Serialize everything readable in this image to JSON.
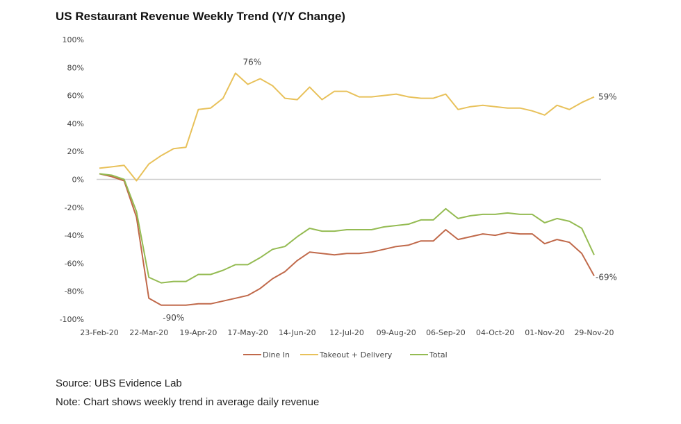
{
  "chart_data": {
    "type": "line",
    "title": "US Restaurant Revenue Weekly Trend (Y/Y Change)",
    "xlabel": "",
    "ylabel": "",
    "ylim": [
      -100,
      100
    ],
    "yticks": [
      "100%",
      "80%",
      "60%",
      "40%",
      "20%",
      "0%",
      "-20%",
      "-40%",
      "-60%",
      "-80%",
      "-100%"
    ],
    "ytick_values": [
      100,
      80,
      60,
      40,
      20,
      0,
      -20,
      -40,
      -60,
      -80,
      -100
    ],
    "xtick_labels": [
      "23-Feb-20",
      "22-Mar-20",
      "19-Apr-20",
      "17-May-20",
      "14-Jun-20",
      "12-Jul-20",
      "09-Aug-20",
      "06-Sep-20",
      "04-Oct-20",
      "01-Nov-20",
      "29-Nov-20"
    ],
    "x": [
      "23-Feb-20",
      "01-Mar-20",
      "08-Mar-20",
      "15-Mar-20",
      "22-Mar-20",
      "29-Mar-20",
      "05-Apr-20",
      "12-Apr-20",
      "19-Apr-20",
      "26-Apr-20",
      "03-May-20",
      "10-May-20",
      "17-May-20",
      "24-May-20",
      "31-May-20",
      "07-Jun-20",
      "14-Jun-20",
      "21-Jun-20",
      "28-Jun-20",
      "05-Jul-20",
      "12-Jul-20",
      "19-Jul-20",
      "26-Jul-20",
      "02-Aug-20",
      "09-Aug-20",
      "16-Aug-20",
      "23-Aug-20",
      "30-Aug-20",
      "06-Sep-20",
      "13-Sep-20",
      "20-Sep-20",
      "27-Sep-20",
      "04-Oct-20",
      "11-Oct-20",
      "18-Oct-20",
      "25-Oct-20",
      "01-Nov-20",
      "08-Nov-20",
      "15-Nov-20",
      "22-Nov-20",
      "29-Nov-20"
    ],
    "grid": false,
    "legend_placement": "bottom",
    "series": [
      {
        "name": "Dine In",
        "color": "#c0694a",
        "values": [
          4,
          2,
          -1,
          -27,
          -85,
          -90,
          -90,
          -90,
          -89,
          -89,
          -87,
          -85,
          -83,
          -78,
          -71,
          -66,
          -58,
          -52,
          -53,
          -54,
          -53,
          -53,
          -52,
          -50,
          -48,
          -47,
          -44,
          -44,
          -36,
          -43,
          -41,
          -39,
          -40,
          -38,
          -39,
          -39,
          -46,
          -43,
          -45,
          -53,
          -69
        ]
      },
      {
        "name": "Takeout + Delivery",
        "color": "#e8c15a",
        "values": [
          8,
          9,
          10,
          -1,
          11,
          17,
          22,
          23,
          50,
          51,
          58,
          76,
          68,
          72,
          67,
          58,
          57,
          66,
          57,
          63,
          63,
          59,
          59,
          60,
          61,
          59,
          58,
          58,
          61,
          50,
          52,
          53,
          52,
          51,
          51,
          49,
          46,
          53,
          50,
          55,
          59
        ]
      },
      {
        "name": "Total",
        "color": "#94bb52",
        "values": [
          4,
          3,
          0,
          -23,
          -70,
          -74,
          -73,
          -73,
          -68,
          -68,
          -65,
          -61,
          -61,
          -56,
          -50,
          -48,
          -41,
          -35,
          -37,
          -37,
          -36,
          -36,
          -36,
          -34,
          -33,
          -32,
          -29,
          -29,
          -21,
          -28,
          -26,
          -25,
          -25,
          -24,
          -25,
          -25,
          -31,
          -28,
          -30,
          -35,
          -54
        ]
      }
    ],
    "annotations": [
      {
        "text": "76%",
        "series": "Takeout + Delivery",
        "x": "10-May-20"
      },
      {
        "text": "-90%",
        "series": "Dine In",
        "x": "05-Apr-20"
      },
      {
        "text": "59%",
        "series": "Takeout + Delivery",
        "x": "29-Nov-20"
      },
      {
        "text": "-69%",
        "series": "Dine In",
        "x": "29-Nov-20"
      }
    ]
  },
  "footer": {
    "source": "Source: UBS Evidence Lab",
    "note": "Note: Chart shows weekly trend in average daily revenue"
  }
}
